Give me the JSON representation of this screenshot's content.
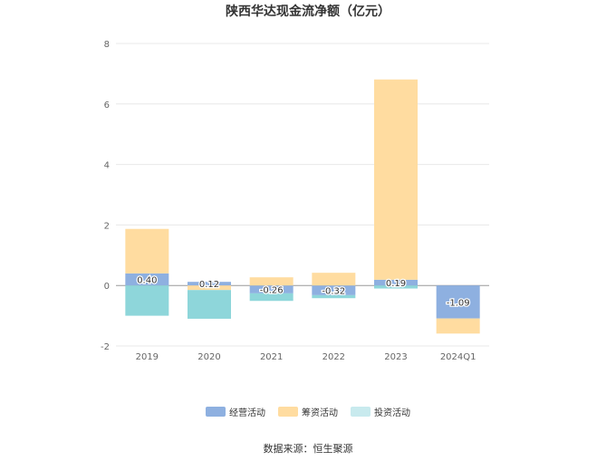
{
  "chart_data": {
    "type": "bar",
    "stacked": true,
    "title": "陕西华达现金流净额（亿元）",
    "categories": [
      "2019",
      "2020",
      "2021",
      "2022",
      "2023",
      "2024Q1"
    ],
    "series": [
      {
        "name": "经营活动",
        "color": "#8eb0e0",
        "values": [
          0.4,
          0.12,
          -0.26,
          -0.32,
          0.19,
          -1.09
        ]
      },
      {
        "name": "筹资活动",
        "color": "#ffdca0",
        "values": [
          1.47,
          -0.15,
          0.27,
          0.42,
          6.62,
          -0.5
        ]
      },
      {
        "name": "投资活动",
        "color": "#8ed6da",
        "values": [
          -1.0,
          -0.95,
          -0.25,
          -0.1,
          -0.1,
          0
        ]
      }
    ],
    "data_labels": [
      "0.40",
      "0.12",
      "-0.26",
      "-0.32",
      "0.19",
      "-1.09"
    ],
    "yticks": [
      8,
      6,
      4,
      2,
      0,
      -2
    ],
    "ylim": [
      -2,
      8
    ],
    "grid": true,
    "legend_position": "bottom"
  },
  "source_text": "数据来源：恒生聚源"
}
